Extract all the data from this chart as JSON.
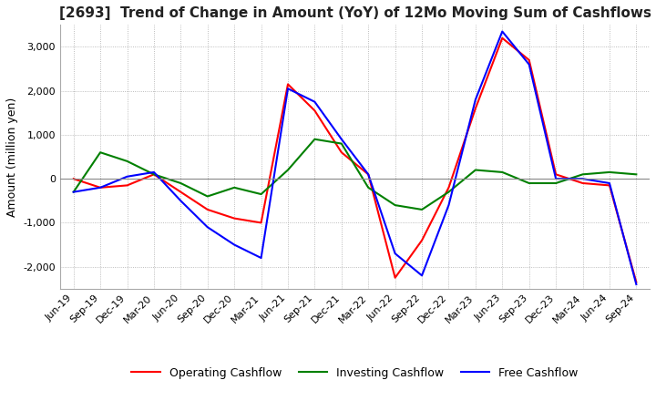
{
  "title": "[2693]  Trend of Change in Amount (YoY) of 12Mo Moving Sum of Cashflows",
  "ylabel": "Amount (million yen)",
  "ylim": [
    -2500,
    3500
  ],
  "yticks": [
    -2000,
    -1000,
    0,
    1000,
    2000,
    3000
  ],
  "x_labels": [
    "Jun-19",
    "Sep-19",
    "Dec-19",
    "Mar-20",
    "Jun-20",
    "Sep-20",
    "Dec-20",
    "Mar-21",
    "Jun-21",
    "Sep-21",
    "Dec-21",
    "Mar-22",
    "Jun-22",
    "Sep-22",
    "Dec-22",
    "Mar-23",
    "Jun-23",
    "Sep-23",
    "Dec-23",
    "Mar-24",
    "Jun-24",
    "Sep-24"
  ],
  "operating": [
    0,
    -200,
    -150,
    100,
    -300,
    -700,
    -900,
    -1000,
    2150,
    1550,
    600,
    100,
    -2250,
    -1400,
    -200,
    1600,
    3200,
    2700,
    100,
    -100,
    -150,
    -2350
  ],
  "investing": [
    -300,
    600,
    400,
    100,
    -100,
    -400,
    -200,
    -350,
    200,
    900,
    800,
    -200,
    -600,
    -700,
    -300,
    200,
    150,
    -100,
    -100,
    100,
    150,
    100
  ],
  "free": [
    -300,
    -200,
    50,
    150,
    -500,
    -1100,
    -1500,
    -1800,
    2050,
    1750,
    900,
    100,
    -1700,
    -2200,
    -600,
    1800,
    3350,
    2600,
    0,
    0,
    -100,
    -2400
  ],
  "operating_color": "#ff0000",
  "investing_color": "#008000",
  "free_color": "#0000ff",
  "background_color": "#ffffff",
  "grid_color": "#aaaaaa",
  "title_color": "#222222",
  "zero_line_color": "#888888"
}
